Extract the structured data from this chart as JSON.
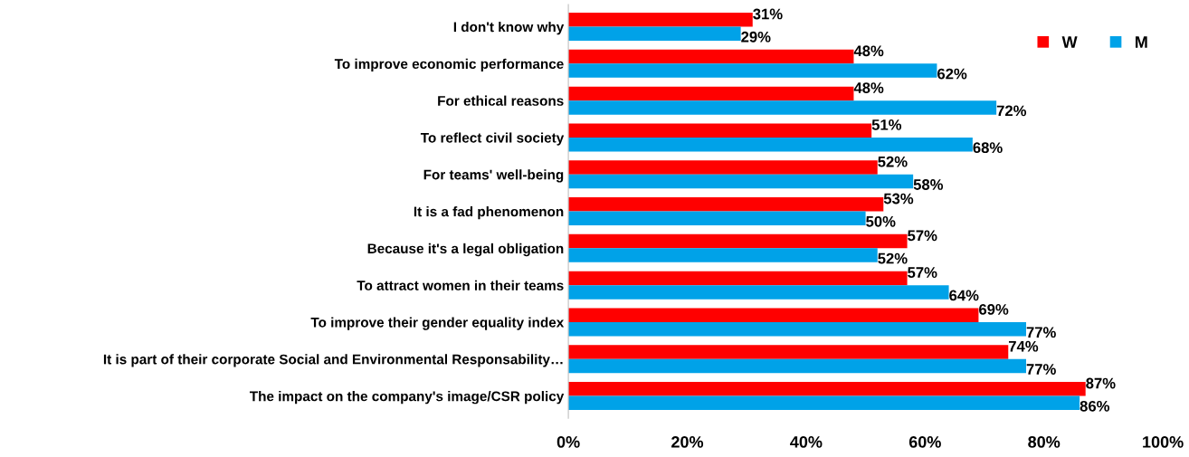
{
  "chart_data": {
    "type": "bar",
    "orientation": "horizontal",
    "categories": [
      "I don't know why",
      "To improve economic performance",
      "For ethical reasons",
      "To reflect civil society",
      "For teams' well-being",
      "It is a fad phenomenon",
      "Because it's a legal obligation",
      "To attract women in their teams",
      "To improve their gender equality index",
      "It is part of their corporate Social and Environmental Responsability…",
      "The impact on the company's image/CSR policy"
    ],
    "series": [
      {
        "name": "W",
        "color": "#ff0000",
        "values": [
          31,
          48,
          48,
          51,
          52,
          53,
          57,
          57,
          69,
          74,
          87
        ],
        "value_labels": [
          "31%",
          "48%",
          "48%",
          "51%",
          "52%",
          "53%",
          "57%",
          "57%",
          "69%",
          "74%",
          "87%"
        ]
      },
      {
        "name": "M",
        "color": "#00a2e8",
        "values": [
          29,
          62,
          72,
          68,
          58,
          50,
          52,
          64,
          77,
          77,
          86
        ],
        "value_labels": [
          "29%",
          "62%",
          "72%",
          "68%",
          "58%",
          "50%",
          "52%",
          "64%",
          "77%",
          "77%",
          "86%"
        ]
      }
    ],
    "xlim": [
      0,
      100
    ],
    "xticks": [
      {
        "value": 0,
        "label": "0%"
      },
      {
        "value": 20,
        "label": "20%"
      },
      {
        "value": 40,
        "label": "40%"
      },
      {
        "value": 60,
        "label": "60%"
      },
      {
        "value": 80,
        "label": "80%"
      },
      {
        "value": 100,
        "label": "100%"
      }
    ],
    "legend": "top right",
    "grid": false
  }
}
